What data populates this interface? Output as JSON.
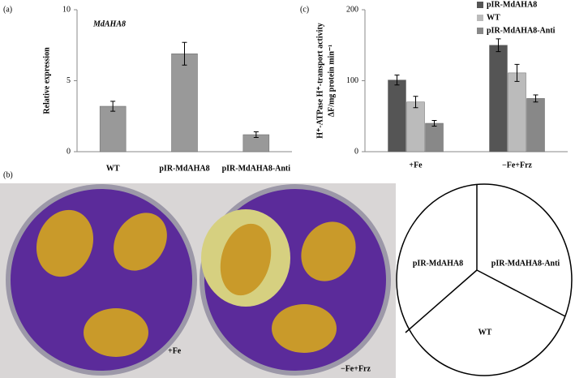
{
  "panel_labels": {
    "a": "(a)",
    "b": "(b)",
    "c": "(c)"
  },
  "plates": {
    "left": "+Fe",
    "right": "−Fe+Frz"
  },
  "diagram": {
    "sectors": [
      "pIR-MdAHA8",
      "pIR-MdAHA8-Anti",
      "WT"
    ]
  },
  "chart_data": [
    {
      "type": "bar",
      "title": "MdAHA8",
      "y_label": [
        "Relative expression"
      ],
      "categories": [
        "WT",
        "pIR-MdAHA8",
        "pIR-MdAHA8-Anti"
      ],
      "values": [
        3.2,
        6.9,
        1.2
      ],
      "errors": [
        0.35,
        0.8,
        0.2
      ],
      "color": "#999999",
      "ylim": [
        0,
        10
      ],
      "yticks": [
        0,
        5,
        10
      ]
    },
    {
      "type": "bar",
      "y_label": [
        "H⁺-ATPase H⁺-transport activity",
        "ΔF/mg protein min⁻¹"
      ],
      "categories": [
        "+Fe",
        "−Fe+Frz"
      ],
      "series": [
        {
          "name": "pIR-MdAHA8",
          "color": "#555555",
          "values": [
            101,
            150
          ],
          "errors": [
            7,
            9
          ]
        },
        {
          "name": "WT",
          "color": "#bbbbbb",
          "values": [
            70,
            111
          ],
          "errors": [
            8,
            12
          ]
        },
        {
          "name": "pIR-MdAHA8-Anti",
          "color": "#888888",
          "values": [
            40,
            75
          ],
          "errors": [
            4,
            5
          ]
        }
      ],
      "ylim": [
        0,
        200
      ],
      "yticks": [
        0,
        100,
        200
      ]
    }
  ]
}
